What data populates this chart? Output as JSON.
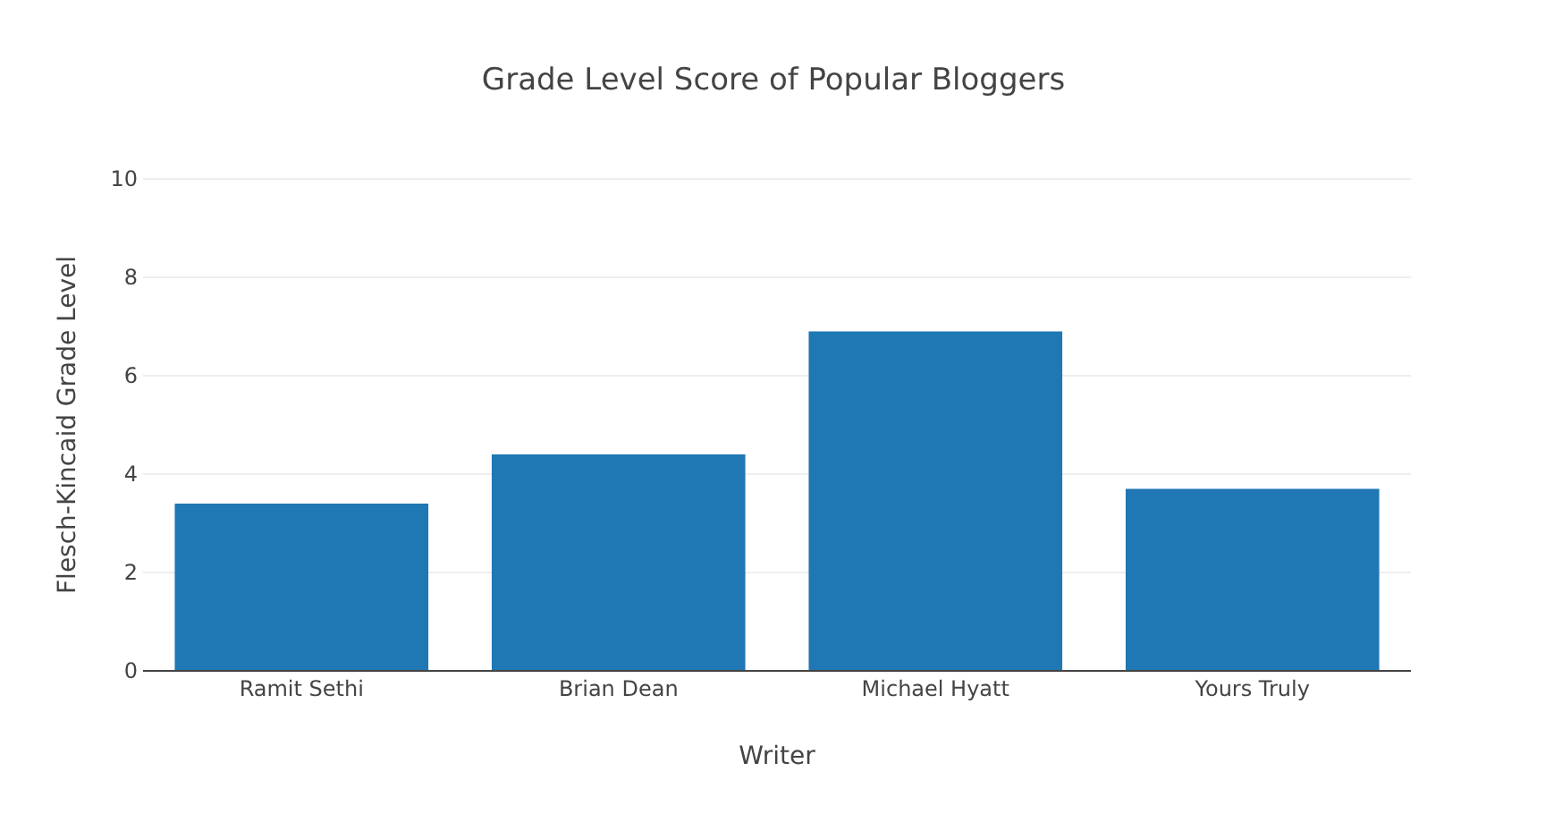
{
  "chart_data": {
    "type": "bar",
    "title": "Grade Level Score of Popular Bloggers",
    "xlabel": "Writer",
    "ylabel": "Flesch-Kincaid Grade Level",
    "categories": [
      "Ramit Sethi",
      "Brian Dean",
      "Michael Hyatt",
      "Yours Truly"
    ],
    "values": [
      3.4,
      4.4,
      6.9,
      3.7
    ],
    "color": "#1f77b4",
    "ylim": [
      0,
      10
    ],
    "yticks": [
      0,
      2,
      4,
      6,
      8,
      10
    ],
    "grid": "y"
  }
}
